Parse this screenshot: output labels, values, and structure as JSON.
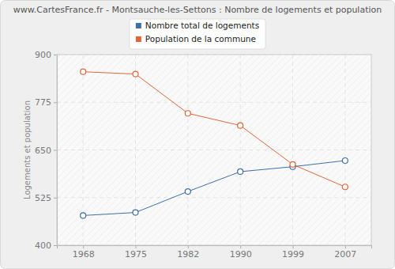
{
  "chart_data": {
    "type": "line",
    "title": "www.CartesFrance.fr - Montsauche-les-Settons : Nombre de logements et population",
    "ylabel": "Logements et population",
    "categories": [
      "1968",
      "1975",
      "1982",
      "1990",
      "1999",
      "2007"
    ],
    "series": [
      {
        "name": "Nombre total de logements",
        "color": "#3f6fa6",
        "marker": "circle",
        "values": [
          478,
          486,
          541,
          593,
          606,
          622
        ]
      },
      {
        "name": "Population de la commune",
        "color": "#e0663a",
        "marker": "circle",
        "values": [
          855,
          849,
          746,
          714,
          612,
          553
        ]
      }
    ],
    "ylim": [
      400,
      900
    ],
    "yticks": [
      400,
      525,
      650,
      775,
      900
    ],
    "grid": true,
    "legend": "top"
  }
}
